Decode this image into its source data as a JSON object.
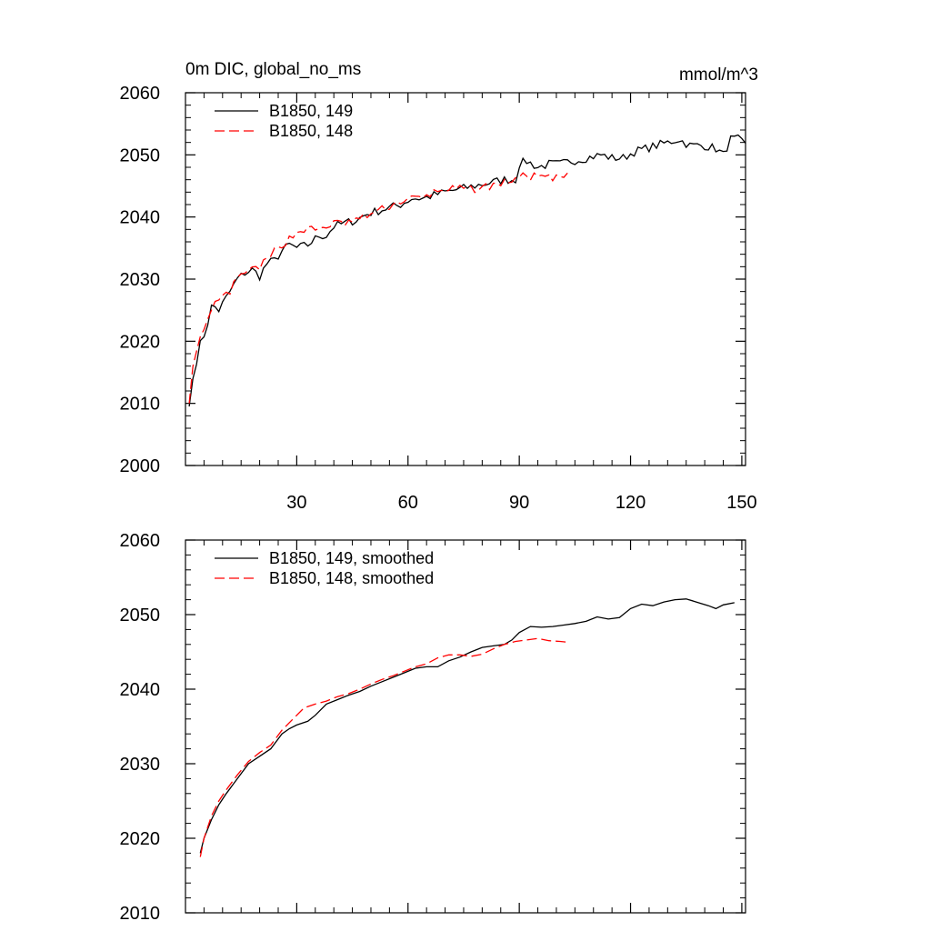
{
  "chart_data": [
    {
      "type": "line",
      "title": "0m DIC, global_no_ms",
      "units": "mmol/m^3",
      "xlim": [
        0,
        151
      ],
      "ylim": [
        2000,
        2060
      ],
      "xticks": [
        30,
        60,
        90,
        120,
        150
      ],
      "yticks": [
        2000,
        2010,
        2020,
        2030,
        2040,
        2050,
        2060
      ],
      "show_x_tick_labels": true,
      "legend_position": "top-left",
      "colors": {
        "series_149": "#000000",
        "series_148": "#ff0000"
      },
      "series": [
        {
          "name": "B1850, 149",
          "style": "solid",
          "color": "#000000",
          "anchors": [
            [
              1,
              2009.5
            ],
            [
              2,
              2014
            ],
            [
              3,
              2017
            ],
            [
              4,
              2019.5
            ],
            [
              5,
              2021
            ],
            [
              6,
              2023
            ],
            [
              7,
              2025.5
            ],
            [
              8,
              2025.5
            ],
            [
              9,
              2025
            ],
            [
              10,
              2026
            ],
            [
              12,
              2028
            ],
            [
              14,
              2030
            ],
            [
              16,
              2031
            ],
            [
              18,
              2031.5
            ],
            [
              20,
              2030.5
            ],
            [
              22,
              2032.5
            ],
            [
              24,
              2033
            ],
            [
              26,
              2034.5
            ],
            [
              28,
              2035.5
            ],
            [
              30,
              2035
            ],
            [
              33,
              2035.5
            ],
            [
              36,
              2037
            ],
            [
              38,
              2037
            ],
            [
              40,
              2038.5
            ],
            [
              43,
              2039
            ],
            [
              46,
              2039.5
            ],
            [
              49,
              2040.5
            ],
            [
              52,
              2041
            ],
            [
              55,
              2041.5
            ],
            [
              58,
              2042
            ],
            [
              61,
              2043
            ],
            [
              64,
              2043
            ],
            [
              67,
              2043.5
            ],
            [
              70,
              2044
            ],
            [
              74,
              2044.5
            ],
            [
              78,
              2045
            ],
            [
              82,
              2045.5
            ],
            [
              86,
              2046
            ],
            [
              89,
              2046
            ],
            [
              90,
              2048.5
            ],
            [
              92,
              2049
            ],
            [
              95,
              2048
            ],
            [
              98,
              2048.5
            ],
            [
              101,
              2048.5
            ],
            [
              104,
              2049
            ],
            [
              108,
              2049.5
            ],
            [
              112,
              2050
            ],
            [
              115,
              2049.5
            ],
            [
              118,
              2049.5
            ],
            [
              121,
              2050.5
            ],
            [
              124,
              2051
            ],
            [
              127,
              2051.5
            ],
            [
              130,
              2052
            ],
            [
              133,
              2052.5
            ],
            [
              136,
              2051.5
            ],
            [
              140,
              2051.5
            ],
            [
              143,
              2051
            ],
            [
              145,
              2050
            ],
            [
              147,
              2052.5
            ],
            [
              149,
              2052.5
            ],
            [
              151,
              2051.5
            ]
          ],
          "noise": 0.7,
          "seed": 7,
          "n_points": 151
        },
        {
          "name": "B1850, 148",
          "style": "dashed",
          "color": "#ff0000",
          "anchors": [
            [
              1,
              2010
            ],
            [
              2,
              2016
            ],
            [
              3,
              2019
            ],
            [
              4,
              2020.5
            ],
            [
              5,
              2021.5
            ],
            [
              6,
              2023
            ],
            [
              8,
              2026
            ],
            [
              10,
              2027
            ],
            [
              12,
              2028
            ],
            [
              14,
              2030
            ],
            [
              16,
              2031
            ],
            [
              18,
              2031.5
            ],
            [
              20,
              2032
            ],
            [
              22,
              2033
            ],
            [
              24,
              2034.5
            ],
            [
              26,
              2035.5
            ],
            [
              28,
              2036.5
            ],
            [
              30,
              2037.5
            ],
            [
              32,
              2038
            ],
            [
              34,
              2038
            ],
            [
              36,
              2038
            ],
            [
              38,
              2038.5
            ],
            [
              40,
              2039
            ],
            [
              43,
              2039
            ],
            [
              46,
              2039.5
            ],
            [
              50,
              2040.5
            ],
            [
              54,
              2041.5
            ],
            [
              58,
              2042.5
            ],
            [
              61,
              2043
            ],
            [
              64,
              2043
            ],
            [
              67,
              2044
            ],
            [
              70,
              2044.5
            ],
            [
              74,
              2044.5
            ],
            [
              78,
              2044.5
            ],
            [
              82,
              2045
            ],
            [
              86,
              2045.5
            ],
            [
              90,
              2046.5
            ],
            [
              93,
              2046.5
            ],
            [
              96,
              2046.5
            ],
            [
              99,
              2046
            ],
            [
              101,
              2046.5
            ],
            [
              103,
              2046.5
            ]
          ],
          "noise": 0.6,
          "seed": 13,
          "n_points": 103
        }
      ]
    },
    {
      "type": "line",
      "title": "",
      "xlim": [
        0,
        151
      ],
      "ylim": [
        2010,
        2060
      ],
      "xticks": [
        30,
        60,
        90,
        120,
        150
      ],
      "yticks": [
        2010,
        2020,
        2030,
        2040,
        2050,
        2060
      ],
      "show_x_tick_labels": false,
      "legend_position": "top-left",
      "series": [
        {
          "name": "B1850, 149, smoothed",
          "style": "solid",
          "color": "#000000",
          "anchors": [
            [
              4,
              2018
            ],
            [
              5,
              2020
            ],
            [
              7,
              2022.5
            ],
            [
              9,
              2024.5
            ],
            [
              11,
              2026
            ],
            [
              14,
              2028
            ],
            [
              17,
              2030
            ],
            [
              20,
              2031
            ],
            [
              23,
              2032
            ],
            [
              26,
              2034
            ],
            [
              28,
              2034.7
            ],
            [
              30,
              2035.2
            ],
            [
              33,
              2035.7
            ],
            [
              35,
              2036.5
            ],
            [
              38,
              2038
            ],
            [
              41,
              2038.6
            ],
            [
              44,
              2039.2
            ],
            [
              47,
              2039.7
            ],
            [
              50,
              2040.4
            ],
            [
              53,
              2041
            ],
            [
              56,
              2041.6
            ],
            [
              59,
              2042.2
            ],
            [
              62,
              2042.8
            ],
            [
              65,
              2043
            ],
            [
              68,
              2043
            ],
            [
              71,
              2043.8
            ],
            [
              74,
              2044.3
            ],
            [
              77,
              2045
            ],
            [
              80,
              2045.6
            ],
            [
              83,
              2045.8
            ],
            [
              86,
              2046
            ],
            [
              88,
              2046.6
            ],
            [
              90,
              2047.6
            ],
            [
              93,
              2048.4
            ],
            [
              96,
              2048.3
            ],
            [
              99,
              2048.4
            ],
            [
              102,
              2048.6
            ],
            [
              105,
              2048.8
            ],
            [
              108,
              2049.1
            ],
            [
              111,
              2049.7
            ],
            [
              114,
              2049.4
            ],
            [
              117,
              2049.6
            ],
            [
              120,
              2050.8
            ],
            [
              123,
              2051.4
            ],
            [
              126,
              2051.2
            ],
            [
              129,
              2051.7
            ],
            [
              132,
              2052
            ],
            [
              135,
              2052.1
            ],
            [
              137,
              2051.8
            ],
            [
              139,
              2051.5
            ],
            [
              141,
              2051.2
            ],
            [
              143,
              2050.8
            ],
            [
              145,
              2051.3
            ],
            [
              148,
              2051.6
            ]
          ],
          "noise": 0.0,
          "seed": 0,
          "n_points": 0
        },
        {
          "name": "B1850, 148, smoothed",
          "style": "dashed",
          "color": "#ff0000",
          "anchors": [
            [
              4,
              2017.5
            ],
            [
              5,
              2020
            ],
            [
              7,
              2023
            ],
            [
              9,
              2025
            ],
            [
              11,
              2026.5
            ],
            [
              14,
              2028.5
            ],
            [
              17,
              2030.3
            ],
            [
              20,
              2031.5
            ],
            [
              23,
              2032.5
            ],
            [
              26,
              2034.5
            ],
            [
              29,
              2036
            ],
            [
              32,
              2037.5
            ],
            [
              35,
              2038
            ],
            [
              38,
              2038.4
            ],
            [
              41,
              2039
            ],
            [
              44,
              2039.4
            ],
            [
              47,
              2040
            ],
            [
              50,
              2040.7
            ],
            [
              53,
              2041.3
            ],
            [
              56,
              2041.8
            ],
            [
              59,
              2042.4
            ],
            [
              62,
              2043
            ],
            [
              65,
              2043.4
            ],
            [
              68,
              2044.2
            ],
            [
              71,
              2044.6
            ],
            [
              74,
              2044.6
            ],
            [
              77,
              2044.4
            ],
            [
              80,
              2044.7
            ],
            [
              83,
              2045.4
            ],
            [
              86,
              2046
            ],
            [
              89,
              2046.4
            ],
            [
              92,
              2046.6
            ],
            [
              95,
              2046.8
            ],
            [
              98,
              2046.5
            ],
            [
              101,
              2046.4
            ],
            [
              103,
              2046.3
            ]
          ],
          "noise": 0.0,
          "seed": 0,
          "n_points": 0
        }
      ]
    }
  ]
}
